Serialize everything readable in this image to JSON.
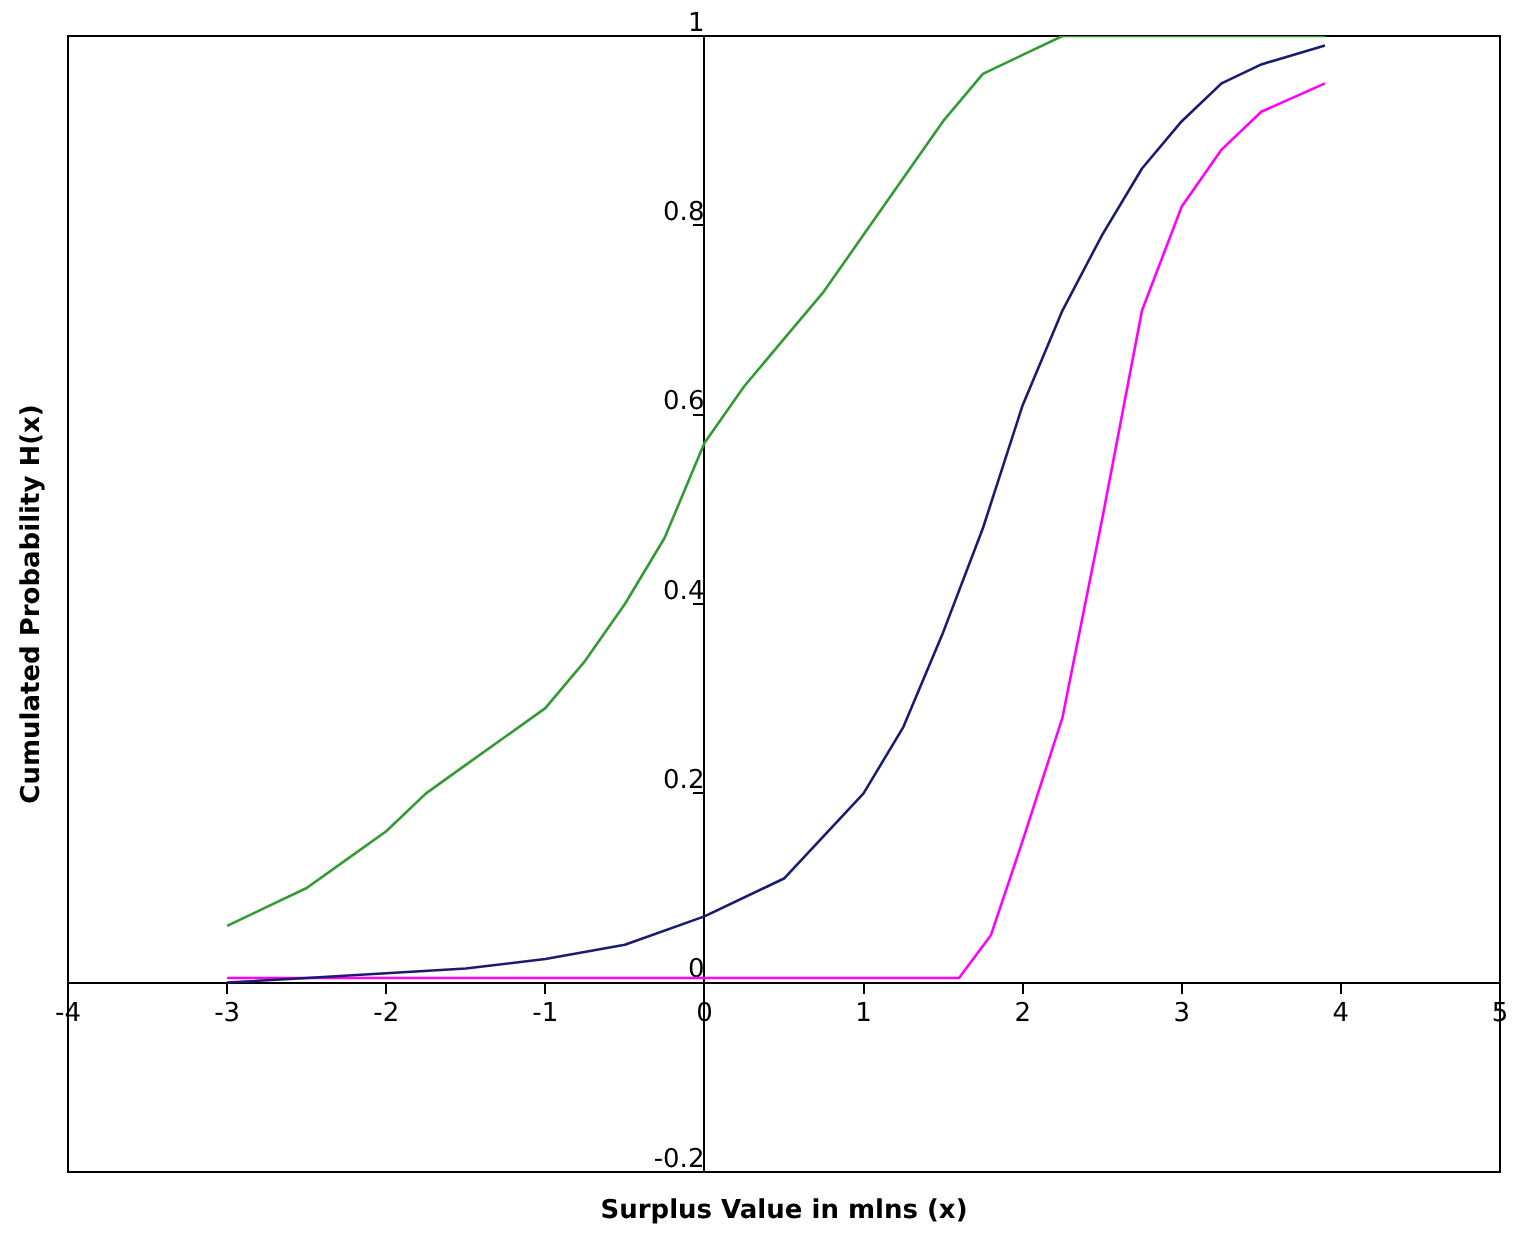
{
  "chart_data": {
    "type": "line",
    "xlabel": "Surplus Value in mlns (x)",
    "ylabel": "Cumulated Probability H(x)",
    "xlim": [
      -4,
      5
    ],
    "xticks": [
      -4,
      -3,
      -2,
      -1,
      0,
      1,
      2,
      3,
      4,
      5
    ],
    "ylim": [
      -0.2,
      1
    ],
    "yticks": [
      {
        "value": -0.2,
        "label": "-0.2"
      },
      0,
      0.2,
      0.4,
      0.6,
      0.8,
      1
    ],
    "grid": false,
    "legend": false,
    "marker": "none",
    "line_style": "solid",
    "series": [
      {
        "color": "#339933",
        "x": [
          -3,
          -2.75,
          -2.5,
          -2.25,
          -2,
          -1.75,
          -1.5,
          -1.25,
          -1,
          -0.75,
          -0.5,
          -0.25,
          0,
          0.25,
          0.5,
          0.75,
          1,
          1.25,
          1.5,
          1.75,
          2,
          2.25,
          3,
          3.9
        ],
        "values": [
          0.06,
          0.08,
          0.1,
          0.13,
          0.16,
          0.2,
          0.23,
          0.26,
          0.29,
          0.34,
          0.4,
          0.47,
          0.57,
          0.63,
          0.68,
          0.73,
          0.79,
          0.85,
          0.91,
          0.96,
          0.98,
          1,
          1,
          1
        ]
      },
      {
        "color": "#1a1a6e",
        "x": [
          -3,
          -2.5,
          -2,
          -1.5,
          -1,
          -0.5,
          0,
          0.5,
          1,
          1.25,
          1.5,
          1.75,
          2,
          2.25,
          2.5,
          2.75,
          3,
          3.25,
          3.5,
          3.9
        ],
        "values": [
          0,
          0.005,
          0.01,
          0.015,
          0.025,
          0.04,
          0.07,
          0.11,
          0.2,
          0.27,
          0.37,
          0.48,
          0.61,
          0.71,
          0.79,
          0.86,
          0.91,
          0.95,
          0.97,
          0.99
        ]
      },
      {
        "color": "#ff00ff",
        "x": [
          -3,
          -2,
          -1,
          0,
          1,
          1.6,
          1.8,
          2,
          2.25,
          2.5,
          2.75,
          3,
          3.25,
          3.5,
          3.9
        ],
        "values": [
          0.005,
          0.005,
          0.005,
          0.005,
          0.005,
          0.005,
          0.05,
          0.15,
          0.28,
          0.49,
          0.71,
          0.82,
          0.88,
          0.92,
          0.95
        ]
      }
    ]
  }
}
